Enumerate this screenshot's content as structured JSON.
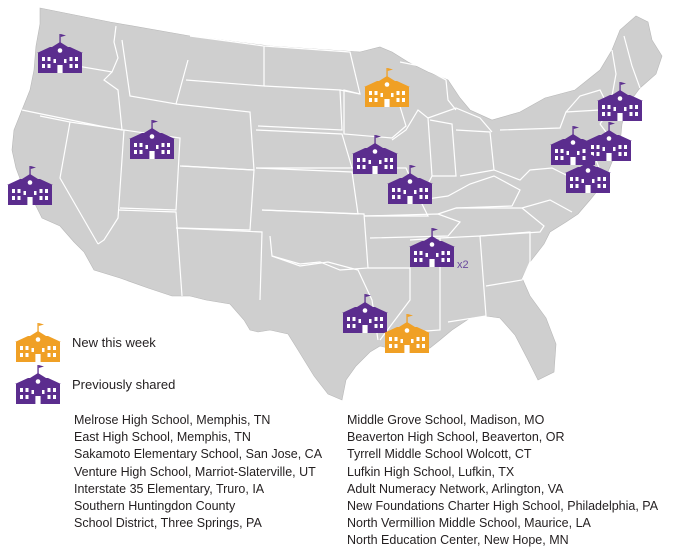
{
  "colors": {
    "new": "#f0a025",
    "previous": "#5b2d8e",
    "land": "#cfcfcf",
    "border": "#ffffff"
  },
  "legend": {
    "new_label": "New this week",
    "previous_label": "Previously shared"
  },
  "markers": [
    {
      "name": "school-marker-portland",
      "status": "previous"
    },
    {
      "name": "school-marker-san-jose",
      "status": "previous"
    },
    {
      "name": "school-marker-utah",
      "status": "previous"
    },
    {
      "name": "school-marker-wisconsin",
      "status": "new"
    },
    {
      "name": "school-marker-iowa",
      "status": "previous"
    },
    {
      "name": "school-marker-missouri",
      "status": "previous"
    },
    {
      "name": "school-marker-memphis",
      "status": "previous"
    },
    {
      "name": "school-marker-texas",
      "status": "previous"
    },
    {
      "name": "school-marker-louisiana",
      "status": "new"
    },
    {
      "name": "school-marker-new-york",
      "status": "previous"
    },
    {
      "name": "school-marker-pennsylvania",
      "status": "previous"
    },
    {
      "name": "school-marker-new-jersey",
      "status": "previous"
    },
    {
      "name": "school-marker-virginia",
      "status": "previous"
    }
  ],
  "memphis_count": "x2",
  "schools_left": [
    "Melrose High School, Memphis, TN",
    "East High School, Memphis, TN",
    "Sakamoto Elementary School, San Jose, CA",
    "Venture High School, Marriot-Slaterville, UT",
    "Interstate 35 Elementary, Truro, IA",
    "Southern Huntingdon County",
    "School District, Three Springs, PA"
  ],
  "schools_right": [
    "Middle Grove School, Madison, MO",
    "Beaverton High School, Beaverton, OR",
    "Tyrrell Middle School Wolcott, CT",
    "Lufkin High School, Lufkin, TX",
    "Adult Numeracy Network, Arlington, VA",
    "New Foundations Charter High School, Philadelphia, PA",
    "North Vermillion Middle School, Maurice, LA",
    "North Education Center, New Hope, MN"
  ]
}
